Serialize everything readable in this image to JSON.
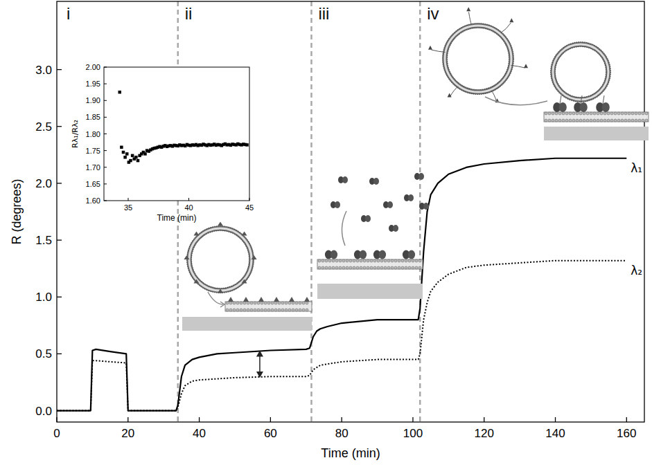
{
  "chart_data": [
    {
      "type": "line",
      "x_label": "Time (min)",
      "y_label": "R (degrees)",
      "x": [
        0,
        9.5,
        10,
        11,
        15,
        19.5,
        20,
        33.5,
        34,
        35,
        36,
        38,
        40,
        45,
        50,
        60,
        70,
        71,
        72,
        73,
        74,
        76,
        80,
        90,
        95,
        101.5,
        102,
        103,
        104,
        105,
        107,
        110,
        115,
        120,
        130,
        140,
        160
      ],
      "series": [
        {
          "name": "λ₁",
          "color": "#000000",
          "line_style": "solid",
          "values": [
            0,
            0,
            0.53,
            0.54,
            0.52,
            0.5,
            0,
            0,
            0.05,
            0.3,
            0.4,
            0.45,
            0.47,
            0.5,
            0.51,
            0.53,
            0.54,
            0.55,
            0.65,
            0.7,
            0.72,
            0.74,
            0.77,
            0.8,
            0.8,
            0.8,
            0.9,
            1.4,
            1.75,
            1.9,
            2.0,
            2.08,
            2.14,
            2.17,
            2.2,
            2.22,
            2.22
          ]
        },
        {
          "name": "λ₂",
          "color": "#000000",
          "line_style": "dotted",
          "values": [
            0,
            0,
            0.44,
            0.44,
            0.43,
            0.42,
            0,
            0,
            0.03,
            0.15,
            0.22,
            0.26,
            0.27,
            0.28,
            0.29,
            0.3,
            0.3,
            0.31,
            0.36,
            0.38,
            0.4,
            0.41,
            0.43,
            0.45,
            0.45,
            0.45,
            0.5,
            0.8,
            0.95,
            1.05,
            1.13,
            1.2,
            1.26,
            1.28,
            1.3,
            1.32,
            1.32
          ]
        }
      ],
      "xlim": [
        0,
        165
      ],
      "ylim": [
        -0.1,
        3.6
      ],
      "xticks": [
        0,
        20,
        40,
        60,
        80,
        100,
        120,
        140,
        160
      ],
      "yticks": [
        {
          "value": 0,
          "label": "0.0"
        },
        {
          "value": 0.5,
          "label": "0.5"
        },
        {
          "value": 1,
          "label": "1.0"
        },
        {
          "value": 1.5,
          "label": "1.5"
        },
        {
          "value": 2,
          "label": "2.0"
        },
        {
          "value": 2.5,
          "label": "2.5"
        },
        {
          "value": 3,
          "label": "3.0"
        }
      ],
      "annotations": {
        "phase_lines": [
          34,
          71.5,
          102
        ],
        "phase_labels": [
          "i",
          "ii",
          "iii",
          "iv"
        ],
        "arrow": {
          "x": 57,
          "y": [
            0.29,
            0.53
          ]
        }
      }
    },
    {
      "type": "scatter",
      "x_label": "Time (min)",
      "y_label": "Rλ₁/Rλ₂",
      "x": [
        34.3,
        34.45,
        34.6,
        34.75,
        34.9,
        35.05,
        35.2,
        35.35,
        35.5,
        35.65,
        35.8,
        35.95,
        36.1,
        36.25,
        36.4,
        36.55,
        36.7,
        36.85,
        37.0,
        37.15,
        37.3,
        37.45,
        37.6,
        37.75,
        37.9,
        38.05,
        38.2,
        38.35,
        38.5,
        38.65,
        38.8,
        38.95,
        39.1,
        39.25,
        39.4,
        39.55,
        39.7,
        39.85,
        40.0,
        40.15,
        40.3,
        40.45,
        40.6,
        40.75,
        40.9,
        41.05,
        41.2,
        41.35,
        41.5,
        41.65,
        41.8,
        41.95,
        42.1,
        42.25,
        42.4,
        42.55,
        42.7,
        42.85,
        43.0,
        43.15,
        43.3,
        43.45,
        43.6,
        43.75,
        43.9,
        44.05,
        44.2,
        44.35,
        44.5,
        44.65,
        44.8
      ],
      "series": [
        {
          "color": "#000000",
          "marker": "square",
          "values": [
            1.925,
            1.76,
            1.745,
            1.73,
            1.74,
            1.715,
            1.72,
            1.735,
            1.725,
            1.73,
            1.72,
            1.735,
            1.74,
            1.745,
            1.74,
            1.75,
            1.748,
            1.752,
            1.755,
            1.757,
            1.758,
            1.76,
            1.762,
            1.76,
            1.763,
            1.765,
            1.762,
            1.764,
            1.765,
            1.763,
            1.766,
            1.765,
            1.764,
            1.767,
            1.765,
            1.766,
            1.764,
            1.768,
            1.766,
            1.765,
            1.767,
            1.766,
            1.768,
            1.765,
            1.767,
            1.766,
            1.769,
            1.767,
            1.765,
            1.768,
            1.766,
            1.767,
            1.769,
            1.766,
            1.768,
            1.767,
            1.765,
            1.768,
            1.77,
            1.767,
            1.768,
            1.766,
            1.769,
            1.768,
            1.767,
            1.77,
            1.768,
            1.767,
            1.769,
            1.768,
            1.767
          ]
        }
      ],
      "xlim": [
        33,
        45
      ],
      "ylim": [
        1.6,
        2.0
      ],
      "xticks": [
        35,
        40,
        45
      ],
      "yticks": [
        {
          "value": 1.6,
          "label": "1.60"
        },
        {
          "value": 1.65,
          "label": "1.65"
        },
        {
          "value": 1.7,
          "label": "1.70"
        },
        {
          "value": 1.75,
          "label": "1.75"
        },
        {
          "value": 1.8,
          "label": "1.80"
        },
        {
          "value": 1.85,
          "label": "1.85"
        },
        {
          "value": 1.9,
          "label": "1.90"
        },
        {
          "value": 1.95,
          "label": "1.95"
        },
        {
          "value": 2.0,
          "label": "2.00"
        }
      ]
    }
  ]
}
